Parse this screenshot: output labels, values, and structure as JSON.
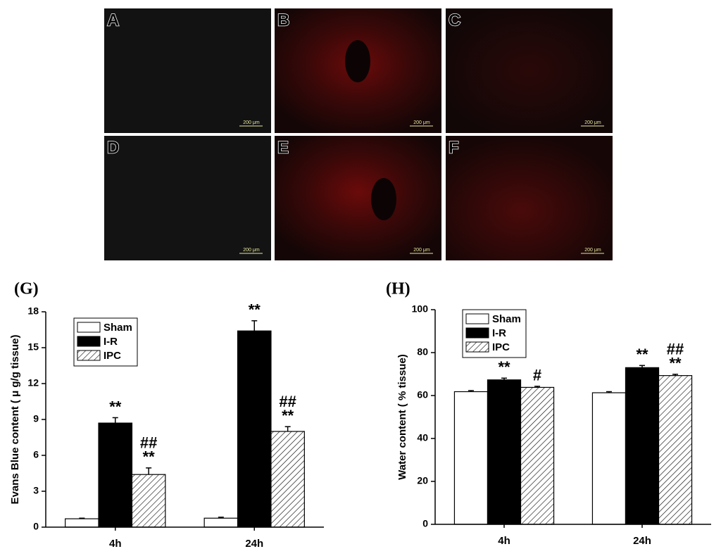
{
  "panels": [
    {
      "label": "A",
      "scale_bar": "200 μm"
    },
    {
      "label": "B",
      "scale_bar": "200 μm"
    },
    {
      "label": "C",
      "scale_bar": "200 μm"
    },
    {
      "label": "D",
      "scale_bar": "200 μm"
    },
    {
      "label": "E",
      "scale_bar": "200 μm"
    },
    {
      "label": "F",
      "scale_bar": "200 μm"
    }
  ],
  "chart_data": [
    {
      "type": "bar",
      "title": "(G)",
      "y_label": "Evans Blue content ( μ g/g tissue)",
      "categories": [
        "4h",
        "24h"
      ],
      "series": [
        {
          "name": "Sham",
          "color": "#ffffff",
          "values": [
            0.7,
            0.75
          ],
          "errors": [
            0.05,
            0.08
          ],
          "significance": [
            null,
            null
          ]
        },
        {
          "name": "I-R",
          "color": "#000000",
          "values": [
            8.7,
            16.4
          ],
          "errors": [
            0.45,
            0.85
          ],
          "significance": [
            [
              "**"
            ],
            [
              "**"
            ]
          ]
        },
        {
          "name": "IPC",
          "color": "#ffffff",
          "pattern": "hatch",
          "values": [
            4.4,
            8.0
          ],
          "errors": [
            0.55,
            0.4
          ],
          "significance": [
            [
              "##",
              "**"
            ],
            [
              "##",
              "**"
            ]
          ]
        }
      ],
      "ylim": [
        0,
        18
      ],
      "yticks": [
        0,
        3,
        6,
        9,
        12,
        15,
        18
      ],
      "legend": "upper-left"
    },
    {
      "type": "bar",
      "title": "(H)",
      "y_label": "Water content ( % tissue)",
      "categories": [
        "4h",
        "24h"
      ],
      "series": [
        {
          "name": "Sham",
          "color": "#ffffff",
          "values": [
            61.8,
            61.3
          ],
          "errors": [
            0.5,
            0.5
          ],
          "significance": [
            null,
            null
          ]
        },
        {
          "name": "I-R",
          "color": "#000000",
          "values": [
            67.3,
            73.0
          ],
          "errors": [
            0.8,
            1.0
          ],
          "significance": [
            [
              "**"
            ],
            [
              "**"
            ]
          ]
        },
        {
          "name": "IPC",
          "color": "#ffffff",
          "pattern": "hatch",
          "values": [
            63.8,
            69.3
          ],
          "errors": [
            0.5,
            0.6
          ],
          "significance": [
            [
              "#"
            ],
            [
              "##",
              "**"
            ]
          ]
        }
      ],
      "ylim": [
        0,
        100
      ],
      "yticks": [
        0,
        20,
        40,
        60,
        80,
        100
      ],
      "legend": "upper-left"
    }
  ]
}
